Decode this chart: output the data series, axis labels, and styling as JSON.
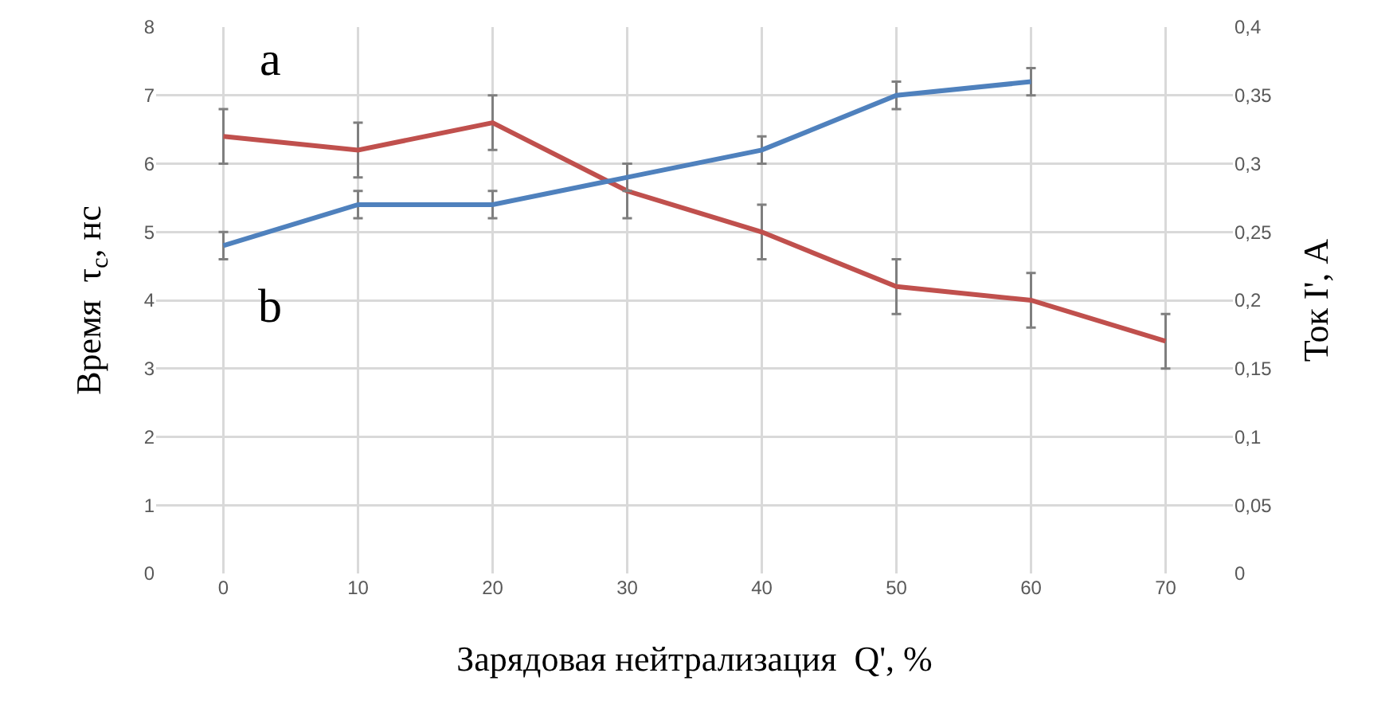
{
  "chart_data": {
    "type": "line",
    "xlabel": "Зарядовая нейтрализация  Q', %",
    "ylabel": "Время  τ$_{c}$, нс",
    "y2label": "Ток I', А",
    "categories": [
      "0",
      "10",
      "20",
      "30",
      "40",
      "50",
      "60",
      "70"
    ],
    "series": [
      {
        "name": "a",
        "color": "#c0504d",
        "values": [
          6.4,
          6.2,
          6.6,
          5.6,
          5.0,
          4.2,
          4.0,
          3.4
        ],
        "errors": [
          0.4,
          0.4,
          0.4,
          0.4,
          0.4,
          0.4,
          0.4,
          0.4
        ]
      },
      {
        "name": "b",
        "color": "#4f81bd",
        "axis": "y2",
        "values": [
          0.24,
          0.27,
          0.27,
          0.29,
          0.31,
          0.35,
          0.36,
          null
        ],
        "errors": [
          0.01,
          0.01,
          0.01,
          0.01,
          0.01,
          0.01,
          0.01,
          null
        ]
      }
    ],
    "ylim": [
      0,
      8
    ],
    "yticks": [
      0,
      1,
      2,
      3,
      4,
      5,
      6,
      7,
      8
    ],
    "y2lim": [
      0,
      0.4
    ],
    "y2ticks": [
      0,
      {
        "value": 0.05,
        "label": "0,05"
      },
      {
        "value": 0.1,
        "label": "0,1"
      },
      {
        "value": 0.15,
        "label": "0,15"
      },
      {
        "value": 0.2,
        "label": "0,2"
      },
      {
        "value": 0.25,
        "label": "0,25"
      },
      {
        "value": 0.3,
        "label": "0,3"
      },
      {
        "value": 0.35,
        "label": "0,35"
      },
      {
        "value": 0.4,
        "label": "0,4"
      }
    ],
    "grid": true,
    "legend": false,
    "marker": "none",
    "line_style": "solid"
  }
}
